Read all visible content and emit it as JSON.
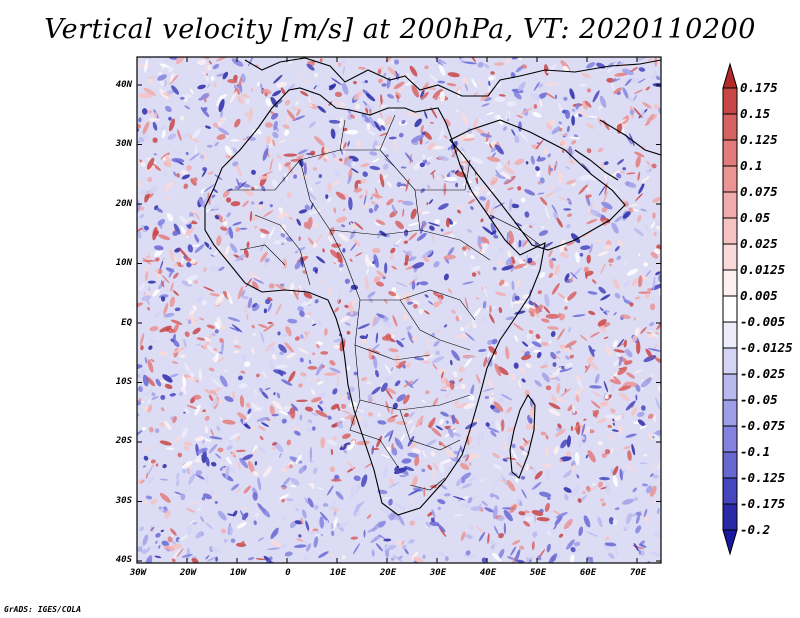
{
  "title": "Vertical velocity [m/s] at 200hPa, VT: 2020110200",
  "y_axis_labels": [
    "40N",
    "30N",
    "20N",
    "10N",
    "EQ",
    "10S",
    "20S",
    "30S",
    "40S"
  ],
  "x_axis_labels": [
    "30W",
    "20W",
    "10W",
    "0",
    "10E",
    "20E",
    "30E",
    "40E",
    "50E",
    "60E",
    "70E"
  ],
  "colorbar": {
    "labels": [
      "0.175",
      "0.15",
      "0.125",
      "0.1",
      "0.075",
      "0.05",
      "0.025",
      "0.0125",
      "0.005",
      "-0.005",
      "-0.0125",
      "-0.025",
      "-0.05",
      "-0.075",
      "-0.1",
      "-0.125",
      "-0.175",
      "-0.2"
    ],
    "colors": [
      "#b22a2a",
      "#c84646",
      "#d76262",
      "#e27c7c",
      "#ea9494",
      "#f0acac",
      "#f5c3c3",
      "#f9d9d9",
      "#fdf0f0",
      "#ffffff",
      "#ececfa",
      "#d4d4f5",
      "#b9b9ef",
      "#9f9fe8",
      "#8383df",
      "#6868d3",
      "#4646c0",
      "#2a2aa8",
      "#1818a0"
    ]
  },
  "map": {
    "lon_range": [
      -30,
      75
    ],
    "lat_range": [
      -40,
      45
    ],
    "field": "vertical velocity",
    "level": "200hPa"
  },
  "credit": "GrADS: IGES/COLA"
}
